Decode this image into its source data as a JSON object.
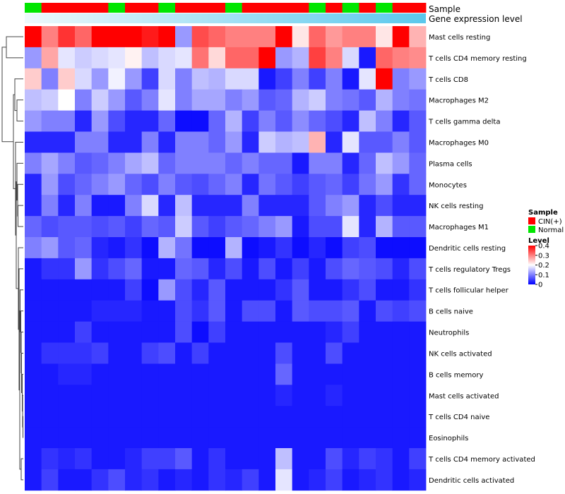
{
  "chart_data": {
    "type": "heatmap",
    "title": "",
    "annotation_tracks": [
      {
        "name": "Sample",
        "type": "categorical"
      },
      {
        "name": "Gene expression level",
        "type": "continuous"
      }
    ],
    "sample_annotation": [
      "Normal",
      "CIN(+)",
      "CIN(+)",
      "CIN(+)",
      "CIN(+)",
      "Normal",
      "CIN(+)",
      "CIN(+)",
      "Normal",
      "CIN(+)",
      "CIN(+)",
      "CIN(+)",
      "Normal",
      "CIN(+)",
      "CIN(+)",
      "CIN(+)",
      "CIN(+)",
      "Normal",
      "CIN(+)",
      "Normal",
      "CIN(+)",
      "Normal",
      "CIN(+)",
      "CIN(+)"
    ],
    "sample_colors": {
      "CIN(+)": "#ff0000",
      "Normal": "#00e600"
    },
    "expression_level_bar": [
      0.45,
      0.45,
      0.5,
      0.5,
      0.55,
      0.55,
      0.6,
      0.6,
      0.65,
      0.65,
      0.7,
      0.7,
      0.75,
      0.75,
      0.8,
      0.8,
      0.85,
      0.85,
      0.9,
      0.9,
      0.95,
      0.95,
      1.0,
      1.0
    ],
    "rows": [
      "Mast cells resting",
      "T cells CD4 memory resting",
      "T cells CD8",
      "Macrophages M2",
      "T cells gamma delta",
      "Macrophages M0",
      "Plasma cells",
      "Monocytes",
      "NK cells resting",
      "Macrophages M1",
      "Dendritic cells resting",
      "T cells regulatory  Tregs",
      "T cells follicular helper",
      "B cells naive",
      "Neutrophils",
      "NK cells activated",
      "B cells memory",
      "Mast cells activated",
      "T cells CD4 naive",
      "Eosinophils",
      "T cells CD4 memory activated",
      "Dendritic cells activated"
    ],
    "values": [
      [
        0.4,
        0.3,
        0.36,
        0.32,
        0.4,
        0.4,
        0.4,
        0.38,
        0.4,
        0.12,
        0.34,
        0.32,
        0.3,
        0.3,
        0.3,
        0.4,
        0.22,
        0.32,
        0.28,
        0.3,
        0.3,
        0.22,
        0.4,
        0.26
      ],
      [
        0.12,
        0.27,
        0.18,
        0.16,
        0.17,
        0.18,
        0.21,
        0.15,
        0.17,
        0.18,
        0.31,
        0.23,
        0.32,
        0.32,
        0.4,
        0.12,
        0.14,
        0.35,
        0.3,
        0.17,
        0.02,
        0.32,
        0.3,
        0.29
      ],
      [
        0.24,
        0.1,
        0.24,
        0.17,
        0.12,
        0.19,
        0.12,
        0.05,
        0.17,
        0.1,
        0.15,
        0.14,
        0.17,
        0.17,
        0.02,
        0.05,
        0.1,
        0.05,
        0.1,
        0.02,
        0.18,
        0.4,
        0.1,
        0.12
      ],
      [
        0.15,
        0.16,
        0.2,
        0.1,
        0.16,
        0.12,
        0.07,
        0.1,
        0.18,
        0.1,
        0.13,
        0.13,
        0.1,
        0.12,
        0.07,
        0.08,
        0.14,
        0.16,
        0.1,
        0.09,
        0.07,
        0.14,
        0.1,
        0.09
      ],
      [
        0.12,
        0.1,
        0.1,
        0.03,
        0.12,
        0.06,
        0.03,
        0.03,
        0.08,
        0.01,
        0.01,
        0.08,
        0.14,
        0.05,
        0.1,
        0.07,
        0.11,
        0.08,
        0.06,
        0.03,
        0.15,
        0.1,
        0.03,
        0.07
      ],
      [
        0.03,
        0.03,
        0.03,
        0.1,
        0.1,
        0.03,
        0.03,
        0.1,
        0.03,
        0.1,
        0.1,
        0.08,
        0.12,
        0.03,
        0.16,
        0.14,
        0.15,
        0.26,
        0.03,
        0.18,
        0.07,
        0.07,
        0.1,
        0.07
      ],
      [
        0.1,
        0.13,
        0.1,
        0.07,
        0.08,
        0.1,
        0.13,
        0.15,
        0.08,
        0.1,
        0.1,
        0.1,
        0.08,
        0.1,
        0.08,
        0.08,
        0.02,
        0.1,
        0.1,
        0.03,
        0.08,
        0.15,
        0.12,
        0.08
      ],
      [
        0.03,
        0.12,
        0.06,
        0.08,
        0.1,
        0.12,
        0.08,
        0.06,
        0.1,
        0.07,
        0.06,
        0.08,
        0.1,
        0.03,
        0.09,
        0.07,
        0.05,
        0.07,
        0.08,
        0.05,
        0.09,
        0.12,
        0.04,
        0.08
      ],
      [
        0.03,
        0.1,
        0.03,
        0.1,
        0.02,
        0.02,
        0.1,
        0.17,
        0.03,
        0.15,
        0.03,
        0.03,
        0.03,
        0.1,
        0.03,
        0.03,
        0.03,
        0.07,
        0.1,
        0.12,
        0.03,
        0.06,
        0.03,
        0.03
      ],
      [
        0.08,
        0.06,
        0.07,
        0.07,
        0.06,
        0.07,
        0.05,
        0.08,
        0.07,
        0.16,
        0.07,
        0.05,
        0.07,
        0.08,
        0.1,
        0.12,
        0.02,
        0.06,
        0.06,
        0.18,
        0.03,
        0.14,
        0.07,
        0.07
      ],
      [
        0.1,
        0.12,
        0.07,
        0.08,
        0.03,
        0.02,
        0.04,
        0.01,
        0.14,
        0.09,
        0.01,
        0.01,
        0.14,
        0.01,
        0.02,
        0.04,
        0.01,
        0.03,
        0.01,
        0.05,
        0.06,
        0.01,
        0.01,
        0.01
      ],
      [
        0.02,
        0.04,
        0.04,
        0.12,
        0.04,
        0.06,
        0.08,
        0.02,
        0.02,
        0.08,
        0.07,
        0.03,
        0.06,
        0.02,
        0.06,
        0.02,
        0.05,
        0.02,
        0.06,
        0.08,
        0.07,
        0.06,
        0.03,
        0.06
      ],
      [
        0.02,
        0.02,
        0.02,
        0.02,
        0.02,
        0.02,
        0.05,
        0.01,
        0.12,
        0.06,
        0.03,
        0.07,
        0.02,
        0.02,
        0.02,
        0.04,
        0.07,
        0.02,
        0.02,
        0.04,
        0.06,
        0.02,
        0.02,
        0.04
      ],
      [
        0.02,
        0.02,
        0.02,
        0.02,
        0.03,
        0.03,
        0.03,
        0.02,
        0.02,
        0.06,
        0.04,
        0.07,
        0.02,
        0.06,
        0.06,
        0.02,
        0.07,
        0.06,
        0.06,
        0.07,
        0.02,
        0.06,
        0.05,
        0.06
      ],
      [
        0.02,
        0.02,
        0.02,
        0.05,
        0.02,
        0.02,
        0.02,
        0.02,
        0.02,
        0.06,
        0.01,
        0.05,
        0.02,
        0.02,
        0.02,
        0.02,
        0.02,
        0.02,
        0.03,
        0.05,
        0.02,
        0.02,
        0.02,
        0.02
      ],
      [
        0.02,
        0.04,
        0.04,
        0.04,
        0.05,
        0.02,
        0.02,
        0.05,
        0.06,
        0.02,
        0.05,
        0.02,
        0.02,
        0.02,
        0.02,
        0.06,
        0.02,
        0.02,
        0.06,
        0.02,
        0.02,
        0.02,
        0.02,
        0.02
      ],
      [
        0.02,
        0.02,
        0.03,
        0.03,
        0.02,
        0.02,
        0.02,
        0.02,
        0.02,
        0.02,
        0.02,
        0.02,
        0.02,
        0.02,
        0.02,
        0.08,
        0.02,
        0.02,
        0.02,
        0.02,
        0.02,
        0.02,
        0.02,
        0.02
      ],
      [
        0.02,
        0.02,
        0.02,
        0.02,
        0.02,
        0.02,
        0.02,
        0.02,
        0.02,
        0.02,
        0.02,
        0.02,
        0.02,
        0.02,
        0.02,
        0.03,
        0.02,
        0.02,
        0.03,
        0.02,
        0.02,
        0.02,
        0.02,
        0.02
      ],
      [
        0.02,
        0.02,
        0.02,
        0.02,
        0.02,
        0.02,
        0.02,
        0.02,
        0.02,
        0.02,
        0.02,
        0.02,
        0.02,
        0.02,
        0.02,
        0.02,
        0.02,
        0.02,
        0.02,
        0.02,
        0.02,
        0.02,
        0.02,
        0.02
      ],
      [
        0.02,
        0.02,
        0.02,
        0.02,
        0.02,
        0.02,
        0.02,
        0.02,
        0.02,
        0.02,
        0.02,
        0.02,
        0.02,
        0.02,
        0.02,
        0.02,
        0.02,
        0.02,
        0.02,
        0.02,
        0.02,
        0.02,
        0.02,
        0.02
      ],
      [
        0.02,
        0.04,
        0.03,
        0.04,
        0.02,
        0.02,
        0.03,
        0.05,
        0.05,
        0.07,
        0.02,
        0.04,
        0.02,
        0.02,
        0.02,
        0.15,
        0.02,
        0.02,
        0.06,
        0.03,
        0.05,
        0.04,
        0.02,
        0.05
      ],
      [
        0.02,
        0.05,
        0.02,
        0.02,
        0.04,
        0.06,
        0.03,
        0.04,
        0.02,
        0.03,
        0.02,
        0.04,
        0.03,
        0.05,
        0.02,
        0.18,
        0.02,
        0.03,
        0.05,
        0.02,
        0.03,
        0.04,
        0.02,
        0.03
      ]
    ],
    "color_scale": {
      "min": 0,
      "mid": 0.2,
      "max": 0.4,
      "low_color": "#0000ff",
      "mid_color": "#ffffff",
      "high_color": "#ff0000"
    },
    "legend": {
      "sample_title": "Sample",
      "sample_entries": [
        {
          "label": "CIN(+)",
          "color": "#ff0000"
        },
        {
          "label": "Normal",
          "color": "#00e600"
        }
      ],
      "level_title": "Level",
      "level_ticks": [
        "0.4",
        "0.3",
        "0.2",
        "0.1",
        "0"
      ],
      "level_tick_values": [
        0.4,
        0.3,
        0.2,
        0.1,
        0
      ],
      "placement": "right"
    },
    "row_dendrogram": true
  }
}
